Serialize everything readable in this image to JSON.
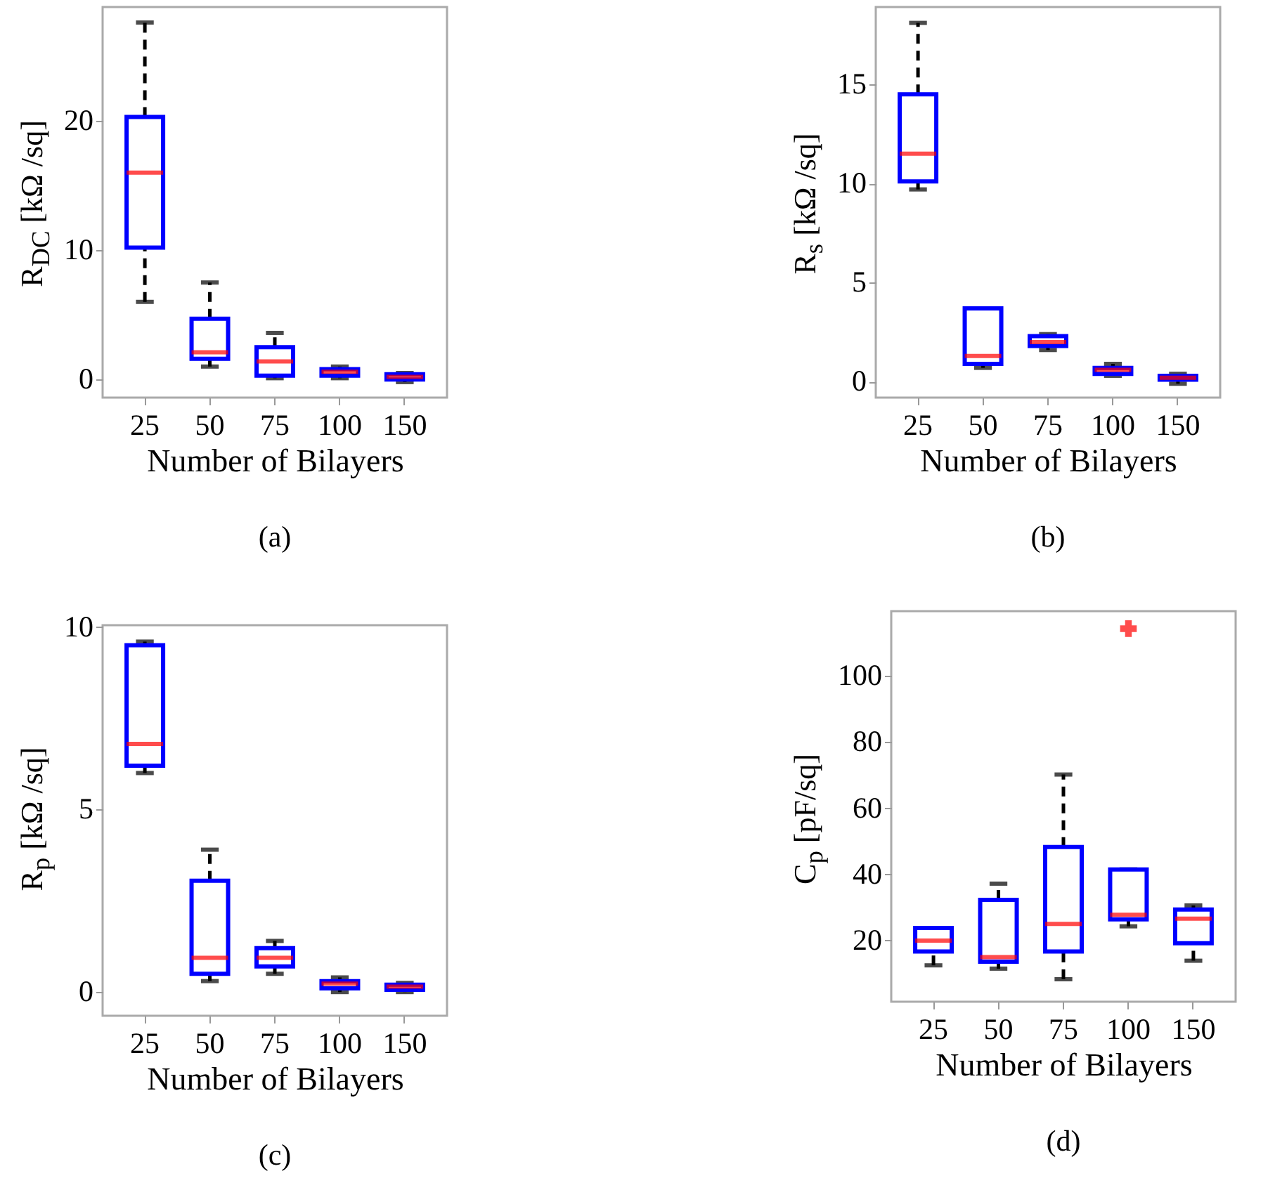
{
  "chart_data": [
    {
      "type": "box",
      "categories": [
        "25",
        "50",
        "75",
        "100",
        "150"
      ],
      "xlabel": "Number of Bilayers",
      "ylabel": "R$_{DC}$ [kΩ /sq]",
      "annotations": [
        "(a)"
      ],
      "ylim": [
        -1.4,
        28.8
      ],
      "yticks": [
        0,
        10,
        20
      ],
      "series": [
        {
          "color": "#0000ff",
          "boxes": [
            {
              "low": 6.0,
              "q1": 10.2,
              "median": 16.0,
              "q3": 20.3,
              "high": 27.6
            },
            {
              "low": 1.0,
              "q1": 1.6,
              "median": 2.1,
              "q3": 4.7,
              "high": 7.5
            },
            {
              "low": 0.1,
              "q1": 0.3,
              "median": 1.4,
              "q3": 2.5,
              "high": 3.6
            },
            {
              "low": 0.1,
              "q1": 0.3,
              "median": 0.6,
              "q3": 0.8,
              "high": 1.0
            },
            {
              "low": -0.2,
              "q1": 0,
              "median": 0.2,
              "q3": 0.4,
              "high": 0.5
            }
          ]
        }
      ]
    },
    {
      "type": "box",
      "categories": [
        "25",
        "50",
        "75",
        "100",
        "150"
      ],
      "xlabel": "Number of Bilayers",
      "ylabel": "R$_{s}$ [kΩ /sq]",
      "annotations": [
        "(b)"
      ],
      "ylim": [
        -0.8,
        18.9
      ],
      "yticks": [
        0,
        5,
        10,
        15
      ],
      "series": [
        {
          "color": "#0000ff",
          "boxes": [
            {
              "low": 9.7,
              "q1": 10.1,
              "median": 11.5,
              "q3": 14.5,
              "high": 18.1
            },
            {
              "low": 0.7,
              "q1": 0.9,
              "median": 1.3,
              "q3": 3.7,
              "high": 3.7
            },
            {
              "low": 1.6,
              "q1": 1.8,
              "median": 2.0,
              "q3": 2.3,
              "high": 2.4
            },
            {
              "low": 0.3,
              "q1": 0.4,
              "median": 0.6,
              "q3": 0.7,
              "high": 0.9
            },
            {
              "low": -0.1,
              "q1": 0.1,
              "median": 0.2,
              "q3": 0.3,
              "high": 0.4
            }
          ]
        }
      ]
    },
    {
      "type": "box",
      "categories": [
        "25",
        "50",
        "75",
        "100",
        "150"
      ],
      "xlabel": "Number of Bilayers",
      "ylabel": "R$_{p}$ [kΩ /sq]",
      "annotations": [
        "(c)"
      ],
      "ylim": [
        -0.65,
        10.05
      ],
      "yticks": [
        0,
        5,
        10
      ],
      "series": [
        {
          "color": "#0000ff",
          "boxes": [
            {
              "low": 6.0,
              "q1": 6.2,
              "median": 6.8,
              "q3": 9.5,
              "high": 9.6
            },
            {
              "low": 0.3,
              "q1": 0.5,
              "median": 0.94,
              "q3": 3.05,
              "high": 3.9
            },
            {
              "low": 0.5,
              "q1": 0.7,
              "median": 0.94,
              "q3": 1.2,
              "high": 1.4
            },
            {
              "low": 0,
              "q1": 0.1,
              "median": 0.23,
              "q3": 0.3,
              "high": 0.4
            },
            {
              "low": 0,
              "q1": 0.06,
              "median": 0.15,
              "q3": 0.2,
              "high": 0.25
            }
          ]
        }
      ]
    },
    {
      "type": "box",
      "categories": [
        "25",
        "50",
        "75",
        "100",
        "150"
      ],
      "xlabel": "Number of Bilayers",
      "ylabel": "C$_{p}$ [pF/sq]",
      "annotations": [
        "(d)"
      ],
      "ylim": [
        1.5,
        119.6
      ],
      "yticks": [
        20,
        40,
        60,
        80,
        100
      ],
      "series": [
        {
          "color": "#0000ff",
          "boxes": [
            {
              "low": 12.5,
              "q1": 16.7,
              "median": 20,
              "q3": 23.8,
              "high": 23.8
            },
            {
              "low": 11.5,
              "q1": 13.6,
              "median": 15.0,
              "q3": 32.3,
              "high": 37.2
            },
            {
              "low": 8.3,
              "q1": 16.7,
              "median": 25.0,
              "q3": 48.3,
              "high": 70.2
            },
            {
              "low": 24.3,
              "q1": 26.4,
              "median": 27.8,
              "q3": 41.5,
              "high": 41.5,
              "outliers": [
                114.3
              ]
            },
            {
              "low": 13.9,
              "q1": 19.2,
              "median": 26.6,
              "q3": 29.4,
              "high": 30.6
            }
          ]
        }
      ]
    }
  ]
}
